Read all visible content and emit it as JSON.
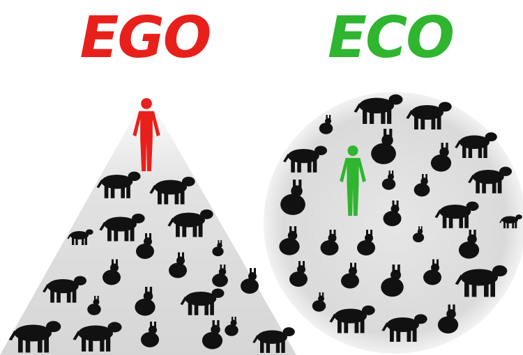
{
  "left": {
    "title": "EGO"
  },
  "right": {
    "title": "ECO"
  }
}
